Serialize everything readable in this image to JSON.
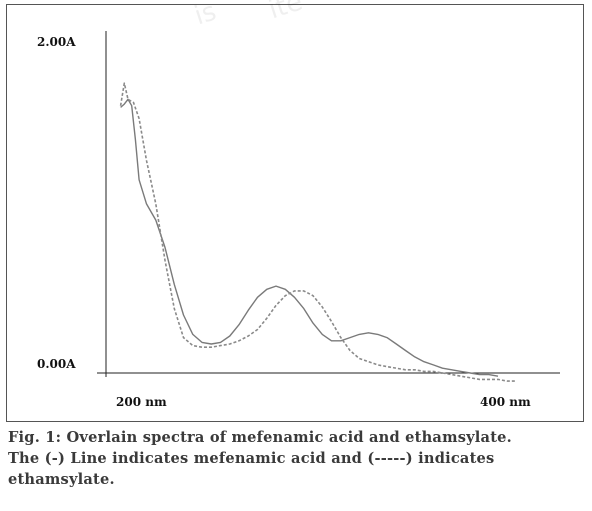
{
  "chart_data": {
    "type": "line",
    "title": "",
    "xlabel": "",
    "ylabel": "",
    "x_ticks": [
      "200 nm",
      "400 nm"
    ],
    "y_ticks": [
      "2.00A",
      "0.00A"
    ],
    "xlim": [
      200,
      400
    ],
    "ylim": [
      0,
      2
    ],
    "grid": false,
    "series": [
      {
        "name": "mefenamic acid",
        "style": "solid",
        "color": "#7a7a7a",
        "x": [
          196,
          198,
          200,
          202,
          204,
          206,
          210,
          215,
          220,
          225,
          230,
          235,
          240,
          245,
          250,
          255,
          260,
          265,
          270,
          275,
          280,
          285,
          290,
          295,
          300,
          305,
          310,
          315,
          320,
          325,
          330,
          335,
          340,
          345,
          350,
          355,
          360,
          365,
          370,
          375,
          380,
          385,
          390,
          395,
          400
        ],
        "y": [
          1.65,
          1.67,
          1.7,
          1.66,
          1.45,
          1.2,
          1.05,
          0.95,
          0.78,
          0.55,
          0.36,
          0.24,
          0.19,
          0.18,
          0.19,
          0.23,
          0.3,
          0.39,
          0.47,
          0.52,
          0.54,
          0.52,
          0.47,
          0.4,
          0.31,
          0.24,
          0.2,
          0.2,
          0.22,
          0.24,
          0.25,
          0.24,
          0.22,
          0.18,
          0.14,
          0.1,
          0.07,
          0.05,
          0.03,
          0.02,
          0.01,
          0.0,
          -0.01,
          -0.01,
          -0.02
        ]
      },
      {
        "name": "ethamsylate",
        "style": "dashed",
        "color": "#8a8a8a",
        "x": [
          196,
          198,
          200,
          203,
          206,
          210,
          215,
          220,
          225,
          230,
          235,
          240,
          245,
          250,
          255,
          260,
          265,
          270,
          275,
          280,
          285,
          290,
          295,
          300,
          305,
          310,
          315,
          320,
          325,
          330,
          335,
          340,
          345,
          350,
          355,
          360,
          365,
          370,
          375,
          380,
          385,
          390,
          395,
          400,
          405,
          410
        ],
        "y": [
          1.66,
          1.8,
          1.7,
          1.68,
          1.58,
          1.32,
          1.05,
          0.7,
          0.4,
          0.22,
          0.17,
          0.16,
          0.16,
          0.17,
          0.18,
          0.2,
          0.23,
          0.27,
          0.34,
          0.42,
          0.48,
          0.51,
          0.51,
          0.48,
          0.41,
          0.32,
          0.22,
          0.14,
          0.09,
          0.07,
          0.05,
          0.04,
          0.03,
          0.02,
          0.02,
          0.01,
          0.01,
          0.0,
          -0.01,
          -0.02,
          -0.03,
          -0.04,
          -0.04,
          -0.04,
          -0.05,
          -0.05
        ]
      }
    ]
  },
  "watermark": [
    "is",
    "ite"
  ],
  "caption": {
    "line1": "Fig. 1: Overlain spectra of mefenamic acid and ethamsylate.",
    "line2": "The (-) Line indicates mefenamic acid and (-----) indicates",
    "line3": "ethamsylate."
  }
}
